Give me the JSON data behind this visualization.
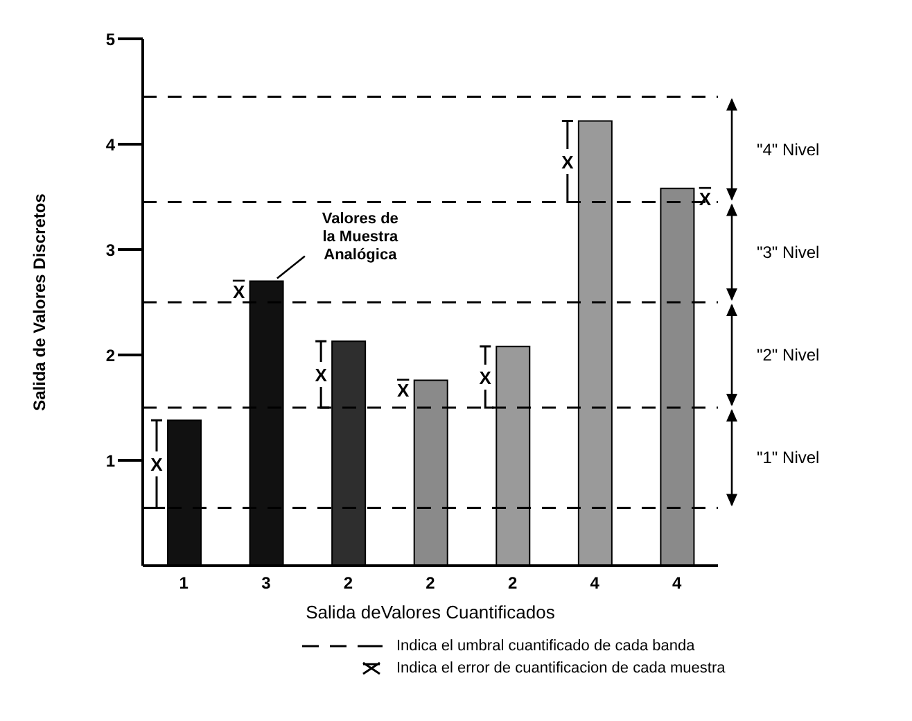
{
  "chart_data": {
    "type": "bar",
    "xlabel": "Salida deValores Cuantificados",
    "ylabel": "Salida de Valores Discretos",
    "categories": [
      "1",
      "3",
      "2",
      "2",
      "2",
      "4",
      "4"
    ],
    "values": [
      1.38,
      2.7,
      2.13,
      1.76,
      2.08,
      4.22,
      3.58
    ],
    "colors": [
      "#111111",
      "#111111",
      "#2e2e2e",
      "#8a8a8a",
      "#9a9a9a",
      "#9a9a9a",
      "#8a8a8a"
    ],
    "value_labels": [
      "X",
      "X",
      "X",
      "X",
      "X",
      "X",
      "X"
    ],
    "ylim": [
      0,
      5
    ],
    "yticks": [
      1,
      2,
      3,
      4,
      5
    ],
    "ref_lines": [
      {
        "axis": "y",
        "value": 0.55,
        "line_style": "dashed",
        "color": "#000000"
      },
      {
        "axis": "y",
        "value": 1.5,
        "line_style": "dashed",
        "color": "#000000"
      },
      {
        "axis": "y",
        "value": 2.5,
        "line_style": "dashed",
        "color": "#000000"
      },
      {
        "axis": "y",
        "value": 3.45,
        "line_style": "dashed",
        "color": "#000000"
      },
      {
        "axis": "y",
        "value": 4.45,
        "line_style": "dashed",
        "color": "#000000"
      }
    ],
    "annotations": [
      {
        "text": "Valores de la Muestra Analógica",
        "x": "3",
        "y": 2.7
      },
      "\"1\" Nivel",
      "\"2\" Nivel",
      "\"3\" Nivel",
      "\"4\" Nivel",
      "Indica el umbral cuantificado de cada banda",
      "Indica el error de cuantificacion de cada muestra"
    ],
    "grid": false,
    "legend": false
  }
}
